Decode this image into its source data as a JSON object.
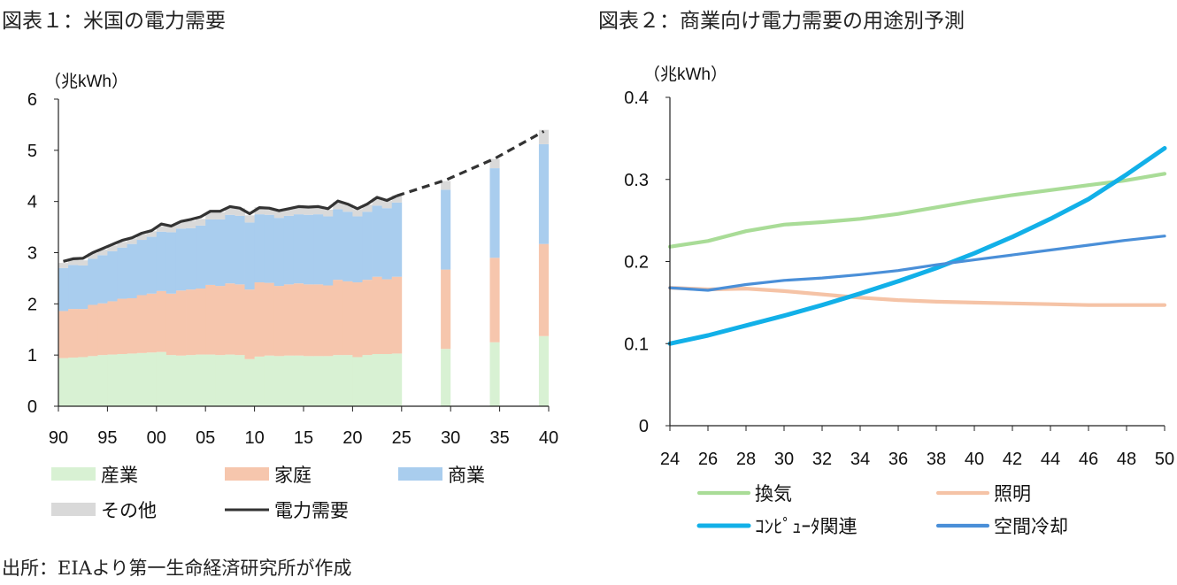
{
  "fig1_title": "図表１：米国の電力需要",
  "fig2_title": "図表２：商業向け電力需要の用途別予測",
  "source": "出所：EIAより第一生命経済研究所が作成",
  "chart_data": [
    {
      "type": "area",
      "title": "図表１：米国の電力需要",
      "unit_label": "（兆kWh）",
      "ylim": [
        0,
        6
      ],
      "yticks": [
        "0",
        "1",
        "2",
        "3",
        "4",
        "5",
        "6"
      ],
      "xticks": [
        "90",
        "95",
        "00",
        "05",
        "10",
        "15",
        "20",
        "25",
        "30",
        "35",
        "40"
      ],
      "grid": false,
      "legend_position": "bottom",
      "colors": {
        "産業": "#d8f1d3",
        "家庭": "#f6c6ad",
        "商業": "#a9cdee",
        "その他": "#d9d9d9",
        "電力需要": "#333333"
      },
      "historical": {
        "years": [
          1990,
          1991,
          1992,
          1993,
          1994,
          1995,
          1996,
          1997,
          1998,
          1999,
          2000,
          2001,
          2002,
          2003,
          2004,
          2005,
          2006,
          2007,
          2008,
          2009,
          2010,
          2011,
          2012,
          2013,
          2014,
          2015,
          2016,
          2017,
          2018,
          2019,
          2020,
          2021,
          2022,
          2023,
          2024
        ],
        "series": [
          {
            "name": "産業",
            "values": [
              0.94,
              0.95,
              0.96,
              0.98,
              1.0,
              1.01,
              1.02,
              1.03,
              1.04,
              1.05,
              1.06,
              1.0,
              0.99,
              1.0,
              1.01,
              1.01,
              1.0,
              1.01,
              1.0,
              0.92,
              0.97,
              0.99,
              0.98,
              0.99,
              0.99,
              0.98,
              0.98,
              0.98,
              1.0,
              1.0,
              0.96,
              1.0,
              1.02,
              1.02,
              1.03
            ]
          },
          {
            "name": "家庭",
            "values": [
              0.92,
              0.95,
              0.94,
              1.0,
              1.01,
              1.04,
              1.08,
              1.08,
              1.13,
              1.15,
              1.19,
              1.2,
              1.27,
              1.28,
              1.29,
              1.36,
              1.35,
              1.39,
              1.38,
              1.36,
              1.45,
              1.42,
              1.37,
              1.39,
              1.41,
              1.4,
              1.4,
              1.38,
              1.47,
              1.44,
              1.46,
              1.47,
              1.51,
              1.46,
              1.5
            ]
          },
          {
            "name": "商業",
            "values": [
              0.84,
              0.86,
              0.85,
              0.9,
              0.94,
              0.98,
              1.0,
              1.06,
              1.08,
              1.11,
              1.16,
              1.2,
              1.21,
              1.2,
              1.23,
              1.28,
              1.3,
              1.34,
              1.34,
              1.31,
              1.33,
              1.33,
              1.33,
              1.34,
              1.35,
              1.36,
              1.37,
              1.35,
              1.38,
              1.36,
              1.29,
              1.33,
              1.39,
              1.39,
              1.45
            ]
          },
          {
            "name": "その他",
            "values": [
              0.1,
              0.1,
              0.1,
              0.11,
              0.11,
              0.11,
              0.11,
              0.11,
              0.11,
              0.11,
              0.11,
              0.13,
              0.13,
              0.14,
              0.13,
              0.14,
              0.14,
              0.15,
              0.15,
              0.14,
              0.14,
              0.14,
              0.13,
              0.13,
              0.13,
              0.15,
              0.15,
              0.13,
              0.14,
              0.14,
              0.14,
              0.14,
              0.15,
              0.14,
              0.14
            ]
          }
        ]
      },
      "forecast": {
        "years": [
          2030,
          2035,
          2040
        ],
        "series": [
          {
            "name": "産業",
            "values": [
              1.12,
              1.25,
              1.37
            ]
          },
          {
            "name": "家庭",
            "values": [
              1.55,
              1.65,
              1.8
            ]
          },
          {
            "name": "商業",
            "values": [
              1.56,
              1.75,
              1.95
            ]
          },
          {
            "name": "その他",
            "values": [
              0.17,
              0.18,
              0.28
            ]
          }
        ]
      },
      "demand_line": {
        "name": "電力需要",
        "years": [
          1990,
          1991,
          1992,
          1993,
          1994,
          1995,
          1996,
          1997,
          1998,
          1999,
          2000,
          2001,
          2002,
          2003,
          2004,
          2005,
          2006,
          2007,
          2008,
          2009,
          2010,
          2011,
          2012,
          2013,
          2014,
          2015,
          2016,
          2017,
          2018,
          2019,
          2020,
          2021,
          2022,
          2023,
          2024
        ],
        "values": [
          2.83,
          2.88,
          2.89,
          3.0,
          3.08,
          3.16,
          3.24,
          3.29,
          3.38,
          3.43,
          3.56,
          3.52,
          3.61,
          3.65,
          3.7,
          3.81,
          3.81,
          3.9,
          3.87,
          3.76,
          3.88,
          3.87,
          3.82,
          3.86,
          3.9,
          3.89,
          3.9,
          3.86,
          4.01,
          3.95,
          3.86,
          3.95,
          4.08,
          4.02,
          4.11
        ]
      },
      "demand_forecast": {
        "name": "電力需要",
        "style": "dashed",
        "years": [
          2024,
          2030,
          2035,
          2040
        ],
        "values": [
          4.11,
          4.42,
          4.84,
          5.37
        ]
      },
      "legend": [
        "産業",
        "家庭",
        "商業",
        "その他",
        "電力需要"
      ]
    },
    {
      "type": "line",
      "title": "図表２：商業向け電力需要の用途別予測",
      "unit_label": "（兆kWh）",
      "ylim": [
        0,
        0.4
      ],
      "yticks": [
        "0",
        "0.1",
        "0.2",
        "0.3",
        "0.4"
      ],
      "xlim": [
        24,
        50
      ],
      "xticks": [
        "24",
        "26",
        "28",
        "30",
        "32",
        "34",
        "36",
        "38",
        "40",
        "42",
        "44",
        "46",
        "48",
        "50"
      ],
      "grid": false,
      "legend_position": "bottom",
      "x": [
        24,
        26,
        28,
        30,
        32,
        34,
        36,
        38,
        40,
        42,
        44,
        46,
        48,
        50
      ],
      "series": [
        {
          "name": "換気",
          "color": "#a9dc97",
          "values": [
            0.218,
            0.225,
            0.237,
            0.245,
            0.248,
            0.252,
            0.258,
            0.266,
            0.274,
            0.281,
            0.287,
            0.293,
            0.299,
            0.307
          ]
        },
        {
          "name": "照明",
          "color": "#f5c3a6",
          "values": [
            0.168,
            0.166,
            0.167,
            0.164,
            0.16,
            0.156,
            0.153,
            0.151,
            0.15,
            0.149,
            0.148,
            0.147,
            0.147,
            0.147
          ]
        },
        {
          "name": "ｺﾝﾋﾟｭｰﾀ関連",
          "color": "#12b0e8",
          "values": [
            0.1,
            0.11,
            0.122,
            0.134,
            0.147,
            0.161,
            0.176,
            0.192,
            0.21,
            0.23,
            0.252,
            0.276,
            0.306,
            0.338
          ]
        },
        {
          "name": "空間冷却",
          "color": "#4a8fd8",
          "values": [
            0.168,
            0.165,
            0.172,
            0.177,
            0.18,
            0.184,
            0.189,
            0.196,
            0.202,
            0.208,
            0.214,
            0.22,
            0.226,
            0.231
          ]
        }
      ],
      "legend": [
        "換気",
        "照明",
        "ｺﾝﾋﾟｭｰﾀ関連",
        "空間冷却"
      ]
    }
  ]
}
